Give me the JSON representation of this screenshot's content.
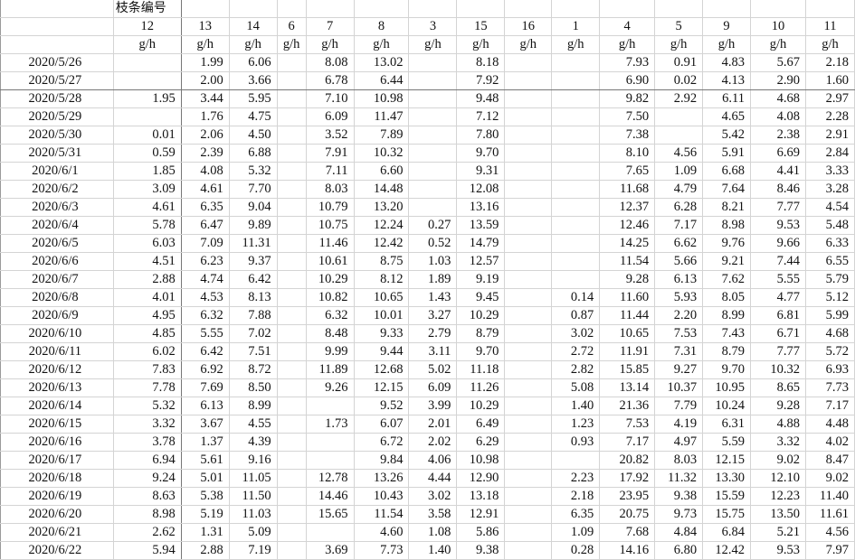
{
  "sheet": {
    "title_label": "枝条编号",
    "columns": [
      "12",
      "13",
      "14",
      "6",
      "7",
      "8",
      "3",
      "15",
      "16",
      "1",
      "4",
      "5",
      "9",
      "10",
      "11"
    ],
    "unit": "g/h",
    "rows": [
      {
        "date": "2020/5/26",
        "values": [
          "",
          "1.99",
          "6.06",
          "",
          "8.08",
          "13.02",
          "",
          "8.18",
          "",
          "",
          "7.93",
          "0.91",
          "4.83",
          "5.67",
          "2.18"
        ]
      },
      {
        "date": "2020/5/27",
        "values": [
          "",
          "2.00",
          "3.66",
          "",
          "6.78",
          "6.44",
          "",
          "7.92",
          "",
          "",
          "6.90",
          "0.02",
          "4.13",
          "2.90",
          "1.60"
        ]
      },
      {
        "date": "2020/5/28",
        "values": [
          "1.95",
          "3.44",
          "5.95",
          "",
          "7.10",
          "10.98",
          "",
          "9.48",
          "",
          "",
          "9.82",
          "2.92",
          "6.11",
          "4.68",
          "2.97"
        ]
      },
      {
        "date": "2020/5/29",
        "values": [
          "",
          "1.76",
          "4.75",
          "",
          "6.09",
          "11.47",
          "",
          "7.12",
          "",
          "",
          "7.50",
          "",
          "4.65",
          "4.08",
          "2.28"
        ]
      },
      {
        "date": "2020/5/30",
        "values": [
          "0.01",
          "2.06",
          "4.50",
          "",
          "3.52",
          "7.89",
          "",
          "7.80",
          "",
          "",
          "7.38",
          "",
          "5.42",
          "2.38",
          "2.91"
        ]
      },
      {
        "date": "2020/5/31",
        "values": [
          "0.59",
          "2.39",
          "6.88",
          "",
          "7.91",
          "10.32",
          "",
          "9.70",
          "",
          "",
          "8.10",
          "4.56",
          "5.91",
          "6.69",
          "2.84"
        ]
      },
      {
        "date": "2020/6/1",
        "values": [
          "1.85",
          "4.08",
          "5.32",
          "",
          "7.11",
          "6.60",
          "",
          "9.31",
          "",
          "",
          "7.65",
          "1.09",
          "6.68",
          "4.41",
          "3.33"
        ]
      },
      {
        "date": "2020/6/2",
        "values": [
          "3.09",
          "4.61",
          "7.70",
          "",
          "8.03",
          "14.48",
          "",
          "12.08",
          "",
          "",
          "11.68",
          "4.79",
          "7.64",
          "8.46",
          "3.28"
        ]
      },
      {
        "date": "2020/6/3",
        "values": [
          "4.61",
          "6.35",
          "9.04",
          "",
          "10.79",
          "13.20",
          "",
          "13.16",
          "",
          "",
          "12.37",
          "6.28",
          "8.21",
          "7.77",
          "4.54"
        ]
      },
      {
        "date": "2020/6/4",
        "values": [
          "5.78",
          "6.47",
          "9.89",
          "",
          "10.75",
          "12.24",
          "0.27",
          "13.59",
          "",
          "",
          "12.46",
          "7.17",
          "8.98",
          "9.53",
          "5.48"
        ]
      },
      {
        "date": "2020/6/5",
        "values": [
          "6.03",
          "7.09",
          "11.31",
          "",
          "11.46",
          "12.42",
          "0.52",
          "14.79",
          "",
          "",
          "14.25",
          "6.62",
          "9.76",
          "9.66",
          "6.33"
        ]
      },
      {
        "date": "2020/6/6",
        "values": [
          "4.51",
          "6.23",
          "9.37",
          "",
          "10.61",
          "8.75",
          "1.03",
          "12.57",
          "",
          "",
          "11.54",
          "5.66",
          "9.21",
          "7.44",
          "6.55"
        ]
      },
      {
        "date": "2020/6/7",
        "values": [
          "2.88",
          "4.74",
          "6.42",
          "",
          "10.29",
          "8.12",
          "1.89",
          "9.19",
          "",
          "",
          "9.28",
          "6.13",
          "7.62",
          "5.55",
          "5.79"
        ]
      },
      {
        "date": "2020/6/8",
        "values": [
          "4.01",
          "4.53",
          "8.13",
          "",
          "10.82",
          "10.65",
          "1.43",
          "9.45",
          "",
          "0.14",
          "11.60",
          "5.93",
          "8.05",
          "4.77",
          "5.12"
        ]
      },
      {
        "date": "2020/6/9",
        "values": [
          "4.95",
          "6.32",
          "7.88",
          "",
          "6.32",
          "10.01",
          "3.27",
          "10.29",
          "",
          "0.87",
          "11.44",
          "2.20",
          "8.99",
          "6.81",
          "5.99"
        ]
      },
      {
        "date": "2020/6/10",
        "values": [
          "4.85",
          "5.55",
          "7.02",
          "",
          "8.48",
          "9.33",
          "2.79",
          "8.79",
          "",
          "3.02",
          "10.65",
          "7.53",
          "7.43",
          "6.71",
          "4.68"
        ]
      },
      {
        "date": "2020/6/11",
        "values": [
          "6.02",
          "6.42",
          "7.51",
          "",
          "9.99",
          "9.44",
          "3.11",
          "9.70",
          "",
          "2.72",
          "11.91",
          "7.31",
          "8.79",
          "7.77",
          "5.72"
        ]
      },
      {
        "date": "2020/6/12",
        "values": [
          "7.83",
          "6.92",
          "8.72",
          "",
          "11.89",
          "12.68",
          "5.02",
          "11.18",
          "",
          "2.82",
          "15.85",
          "9.27",
          "9.70",
          "10.32",
          "6.93"
        ]
      },
      {
        "date": "2020/6/13",
        "values": [
          "7.78",
          "7.69",
          "8.50",
          "",
          "9.26",
          "12.15",
          "6.09",
          "11.26",
          "",
          "5.08",
          "13.14",
          "10.37",
          "10.95",
          "8.65",
          "7.73"
        ]
      },
      {
        "date": "2020/6/14",
        "values": [
          "5.32",
          "6.13",
          "8.99",
          "",
          "",
          "9.52",
          "3.99",
          "10.29",
          "",
          "1.40",
          "21.36",
          "7.79",
          "10.24",
          "9.28",
          "7.17"
        ]
      },
      {
        "date": "2020/6/15",
        "values": [
          "3.32",
          "3.67",
          "4.55",
          "",
          "1.73",
          "6.07",
          "2.01",
          "6.49",
          "",
          "1.23",
          "7.53",
          "4.19",
          "6.31",
          "4.88",
          "4.48"
        ]
      },
      {
        "date": "2020/6/16",
        "values": [
          "3.78",
          "1.37",
          "4.39",
          "",
          "",
          "6.72",
          "2.02",
          "6.29",
          "",
          "0.93",
          "7.17",
          "4.97",
          "5.59",
          "3.32",
          "4.02"
        ]
      },
      {
        "date": "2020/6/17",
        "values": [
          "6.94",
          "5.61",
          "9.16",
          "",
          "",
          "9.84",
          "4.06",
          "10.98",
          "",
          "",
          "20.82",
          "8.03",
          "12.15",
          "9.02",
          "8.47"
        ]
      },
      {
        "date": "2020/6/18",
        "values": [
          "9.24",
          "5.01",
          "11.05",
          "",
          "12.78",
          "13.26",
          "4.44",
          "12.90",
          "",
          "2.23",
          "17.92",
          "11.32",
          "13.30",
          "12.10",
          "9.02"
        ]
      },
      {
        "date": "2020/6/19",
        "values": [
          "8.63",
          "5.38",
          "11.50",
          "",
          "14.46",
          "10.43",
          "3.02",
          "13.18",
          "",
          "2.18",
          "23.95",
          "9.38",
          "15.59",
          "12.23",
          "11.40"
        ]
      },
      {
        "date": "2020/6/20",
        "values": [
          "8.98",
          "5.19",
          "11.03",
          "",
          "15.65",
          "11.54",
          "3.58",
          "12.91",
          "",
          "6.35",
          "20.75",
          "9.73",
          "15.75",
          "13.50",
          "11.61"
        ]
      },
      {
        "date": "2020/6/21",
        "values": [
          "2.62",
          "1.31",
          "5.09",
          "",
          "",
          "4.60",
          "1.08",
          "5.86",
          "",
          "1.09",
          "7.68",
          "4.84",
          "6.84",
          "5.21",
          "4.56"
        ]
      },
      {
        "date": "2020/6/22",
        "values": [
          "5.94",
          "2.88",
          "7.19",
          "",
          "3.69",
          "7.73",
          "1.40",
          "9.38",
          "",
          "0.28",
          "14.16",
          "6.80",
          "12.42",
          "9.53",
          "7.97"
        ]
      }
    ]
  }
}
